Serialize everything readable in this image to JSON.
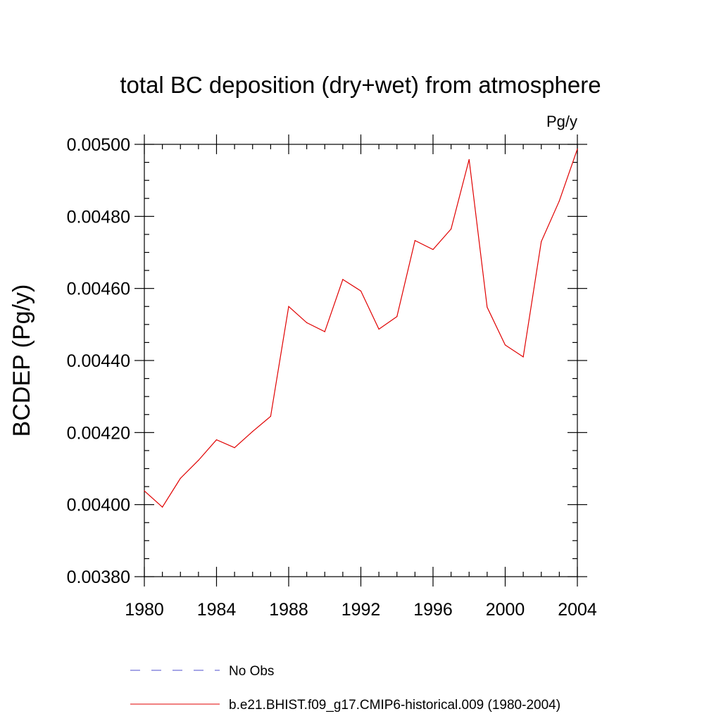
{
  "chart_data": {
    "type": "line",
    "title": "total BC deposition (dry+wet) from atmosphere",
    "units": "Pg/y",
    "xlabel": "",
    "ylabel": "BCDEP  (Pg/y)",
    "xlim": [
      1980,
      2004
    ],
    "ylim": [
      0.0038,
      0.005
    ],
    "xticks": [
      1980,
      1984,
      1988,
      1992,
      1996,
      2000,
      2004
    ],
    "xtick_labels": [
      "1980",
      "1984",
      "1988",
      "1992",
      "1996",
      "2000",
      "2004"
    ],
    "yticks": [
      0.0038,
      0.004,
      0.0042,
      0.0044,
      0.0046,
      0.0048,
      0.005
    ],
    "ytick_labels": [
      "0.00380",
      "0.00400",
      "0.00420",
      "0.00440",
      "0.00460",
      "0.00480",
      "0.00500"
    ],
    "legend_position": "bottom",
    "series": [
      {
        "name": "No Obs",
        "color": "#4d4dcc",
        "dash": true,
        "x": [],
        "values": []
      },
      {
        "name": "b.e21.BHIST.f09_g17.CMIP6-historical.009 (1980-2004)",
        "color": "#e00000",
        "dash": false,
        "x": [
          1980,
          1981,
          1982,
          1983,
          1984,
          1985,
          1986,
          1987,
          1988,
          1989,
          1990,
          1991,
          1992,
          1993,
          1994,
          1995,
          1996,
          1997,
          1998,
          1999,
          2000,
          2001,
          2002,
          2003,
          2004
        ],
        "values": [
          0.004038,
          0.003993,
          0.004073,
          0.004123,
          0.00418,
          0.004158,
          0.004203,
          0.004245,
          0.00455,
          0.004505,
          0.00448,
          0.004625,
          0.004593,
          0.004487,
          0.004522,
          0.004733,
          0.004708,
          0.004765,
          0.004958,
          0.004548,
          0.004443,
          0.00441,
          0.00473,
          0.004843,
          0.004987
        ]
      }
    ]
  }
}
